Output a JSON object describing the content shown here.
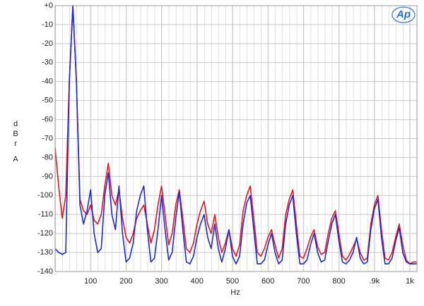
{
  "chart_data": {
    "type": "line",
    "logo": "Ap",
    "x_label": "Hz",
    "y_label": "dBr",
    "y_label_2": "A",
    "xlim": [
      0,
      1020
    ],
    "ylim": [
      -140,
      0
    ],
    "xticks": [
      100,
      200,
      300,
      400,
      500,
      600,
      700,
      800,
      {
        "value": 900,
        "label": ".9k"
      },
      {
        "value": 1000,
        "label": "1k"
      }
    ],
    "yticks": [
      {
        "value": 0,
        "label": "+0"
      },
      -10,
      -20,
      -30,
      -40,
      -50,
      -60,
      -70,
      -80,
      -90,
      -100,
      -110,
      -120,
      -130,
      -140
    ],
    "grid": true,
    "x": [
      0,
      10,
      20,
      30,
      40,
      50,
      60,
      70,
      80,
      90,
      100,
      110,
      120,
      130,
      140,
      150,
      160,
      170,
      180,
      190,
      200,
      210,
      220,
      230,
      240,
      250,
      260,
      270,
      280,
      290,
      300,
      310,
      320,
      330,
      340,
      350,
      360,
      370,
      380,
      390,
      400,
      410,
      420,
      430,
      440,
      450,
      460,
      470,
      480,
      490,
      500,
      510,
      520,
      530,
      540,
      550,
      560,
      570,
      580,
      590,
      600,
      610,
      620,
      630,
      640,
      650,
      660,
      670,
      680,
      690,
      700,
      710,
      720,
      730,
      740,
      750,
      760,
      770,
      780,
      790,
      800,
      810,
      820,
      830,
      840,
      850,
      860,
      870,
      880,
      890,
      900,
      910,
      920,
      930,
      940,
      950,
      960,
      970,
      980,
      990,
      1000,
      1010,
      1020
    ],
    "series": [
      {
        "color": "#e8141b",
        "values": [
          -75,
          -95,
          -112,
          -100,
          -40,
          0,
          -40,
          -102,
          -108,
          -110,
          -105,
          -113,
          -115,
          -110,
          -95,
          -83,
          -100,
          -105,
          -97,
          -112,
          -122,
          -125,
          -120,
          -112,
          -108,
          -105,
          -115,
          -125,
          -118,
          -105,
          -95,
          -110,
          -126,
          -120,
          -105,
          -97,
          -112,
          -128,
          -130,
          -125,
          -115,
          -108,
          -103,
          -115,
          -120,
          -110,
          -122,
          -130,
          -125,
          -118,
          -128,
          -132,
          -126,
          -108,
          -100,
          -95,
          -112,
          -130,
          -132,
          -128,
          -122,
          -118,
          -126,
          -133,
          -128,
          -110,
          -102,
          -97,
          -115,
          -132,
          -133,
          -128,
          -122,
          -118,
          -127,
          -131,
          -130,
          -120,
          -112,
          -108,
          -120,
          -132,
          -134,
          -131,
          -127,
          -123,
          -130,
          -134,
          -133,
          -115,
          -105,
          -100,
          -118,
          -133,
          -134,
          -130,
          -122,
          -115,
          -126,
          -134,
          -136,
          -135,
          -135
        ]
      },
      {
        "color": "#1a2ad6",
        "values": [
          -128,
          -130,
          -131,
          -130,
          -40,
          0,
          -40,
          -105,
          -115,
          -108,
          -97,
          -120,
          -130,
          -128,
          -100,
          -88,
          -110,
          -118,
          -95,
          -120,
          -135,
          -133,
          -125,
          -108,
          -100,
          -95,
          -118,
          -135,
          -133,
          -118,
          -100,
          -118,
          -134,
          -130,
          -112,
          -98,
          -118,
          -135,
          -136,
          -132,
          -122,
          -115,
          -110,
          -122,
          -128,
          -115,
          -128,
          -135,
          -128,
          -118,
          -132,
          -136,
          -132,
          -115,
          -104,
          -100,
          -118,
          -136,
          -136,
          -134,
          -126,
          -120,
          -130,
          -136,
          -134,
          -115,
          -105,
          -100,
          -120,
          -136,
          -136,
          -134,
          -126,
          -120,
          -130,
          -135,
          -134,
          -124,
          -115,
          -110,
          -124,
          -135,
          -136,
          -134,
          -130,
          -122,
          -133,
          -136,
          -135,
          -118,
          -107,
          -102,
          -122,
          -136,
          -136,
          -133,
          -124,
          -117,
          -130,
          -135,
          -136,
          -136,
          -136
        ]
      }
    ]
  }
}
